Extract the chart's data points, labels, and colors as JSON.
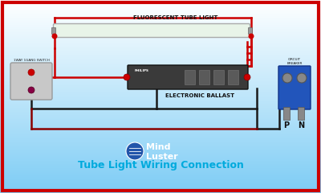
{
  "wire_red": "#cc0000",
  "wire_black": "#1a1a1a",
  "wire_darkred": "#8b0000",
  "border_color": "#cc0000",
  "title": "Tube Light Wiring Connection",
  "title_color": "#00aadd",
  "title_fontsize": 9,
  "tube_label": "FLUORESCENT TUBE LIGHT",
  "ballast_label": "ELECTRONIC BALLAST",
  "switch_label": "1WAY 1GANG SWITCH",
  "breaker_label": "CIRCUIT\nBREAKER",
  "logo_text": "Mind\nLuster",
  "philips_text": "PHILIPS"
}
